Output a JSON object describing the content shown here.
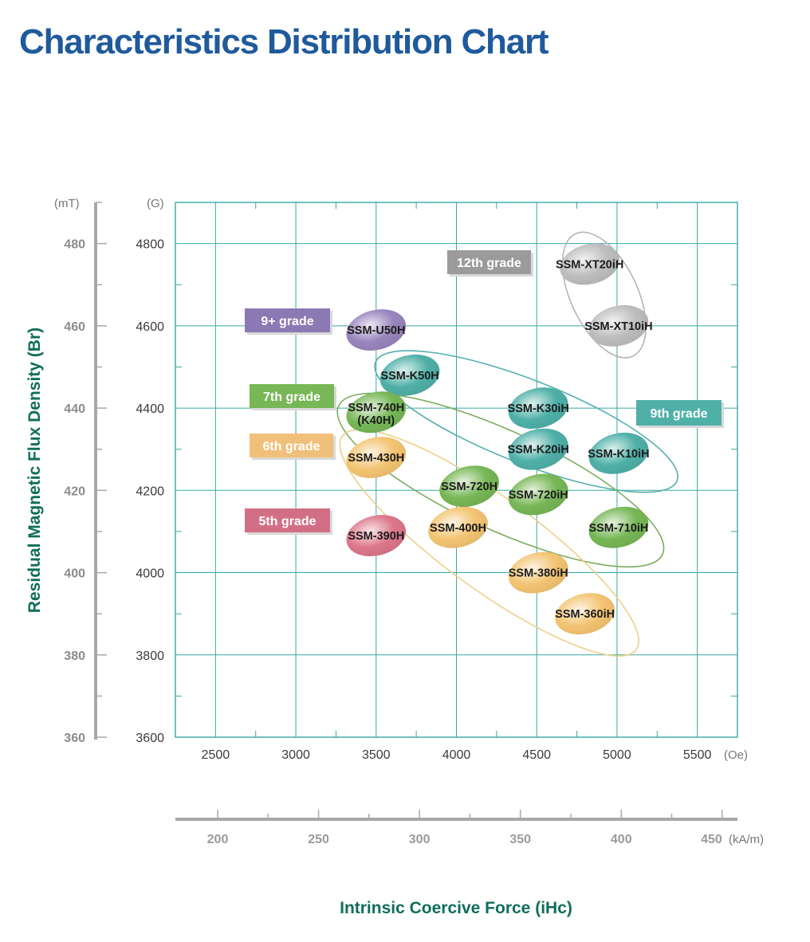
{
  "page": {
    "title": "Characteristics Distribution Chart"
  },
  "chart_data": {
    "type": "scatter",
    "title": "Characteristics Distribution Chart",
    "xlabel": "Intrinsic Coercive Force (iHc)",
    "ylabel": "Residual Magnetic Flux Density (Br)",
    "x_unit": "(Oe)",
    "x_unit_secondary": "(kA/m)",
    "y_unit": "(G)",
    "y_unit_secondary": "(mT)",
    "xlim": [
      2250,
      5750
    ],
    "ylim": [
      3600,
      4900
    ],
    "x_ticks": [
      2500,
      3000,
      3500,
      4000,
      4500,
      5000,
      5500
    ],
    "x_ticks_secondary": [
      200,
      250,
      300,
      350,
      400,
      450
    ],
    "y_ticks": [
      3600,
      3800,
      4000,
      4200,
      4400,
      4600,
      4800
    ],
    "y_ticks_secondary": [
      360,
      380,
      400,
      420,
      440,
      460,
      480
    ],
    "grid": true,
    "products": [
      {
        "name": "SSM-XT20iH",
        "x": 4830,
        "y": 4750,
        "grade": "12th grade",
        "color": "#bdbdbd"
      },
      {
        "name": "SSM-XT10iH",
        "x": 5010,
        "y": 4600,
        "grade": "12th grade",
        "color": "#bdbdbd"
      },
      {
        "name": "SSM-U50H",
        "x": 3500,
        "y": 4590,
        "grade": "9+ grade",
        "color": "#9985bd"
      },
      {
        "name": "SSM-K50H",
        "x": 3710,
        "y": 4480,
        "grade": "9th grade",
        "color": "#4fb0a8"
      },
      {
        "name": "SSM-K30iH",
        "x": 4510,
        "y": 4400,
        "grade": "9th grade",
        "color": "#4fb0a8"
      },
      {
        "name": "SSM-K20iH",
        "x": 4510,
        "y": 4300,
        "grade": "9th grade",
        "color": "#4fb0a8"
      },
      {
        "name": "SSM-K10iH",
        "x": 5010,
        "y": 4290,
        "grade": "9th grade",
        "color": "#4fb0a8"
      },
      {
        "name": "SSM-740H",
        "name2": "(K40H)",
        "x": 3500,
        "y": 4390,
        "grade": "7th grade",
        "color": "#77b756"
      },
      {
        "name": "SSM-720H",
        "x": 4080,
        "y": 4210,
        "grade": "7th grade",
        "color": "#77b756"
      },
      {
        "name": "SSM-720iH",
        "x": 4510,
        "y": 4190,
        "grade": "7th grade",
        "color": "#77b756"
      },
      {
        "name": "SSM-710iH",
        "x": 5010,
        "y": 4110,
        "grade": "7th grade",
        "color": "#77b756"
      },
      {
        "name": "SSM-430H",
        "x": 3500,
        "y": 4280,
        "grade": "6th grade",
        "color": "#f3c472"
      },
      {
        "name": "SSM-400H",
        "x": 4010,
        "y": 4110,
        "grade": "6th grade",
        "color": "#f3c472"
      },
      {
        "name": "SSM-380iH",
        "x": 4510,
        "y": 4000,
        "grade": "6th grade",
        "color": "#f3c472"
      },
      {
        "name": "SSM-360iH",
        "x": 4800,
        "y": 3900,
        "grade": "6th grade",
        "color": "#f3c472"
      },
      {
        "name": "SSM-390H",
        "x": 3500,
        "y": 4090,
        "grade": "5th grade",
        "color": "#dc7789"
      }
    ],
    "grade_labels": [
      {
        "label": "12th grade",
        "color": "#9b9b9b"
      },
      {
        "label": "9+ grade",
        "color": "#8b79b3"
      },
      {
        "label": "7th grade",
        "color": "#77b756"
      },
      {
        "label": "6th grade",
        "color": "#f0c07a"
      },
      {
        "label": "5th grade",
        "color": "#d26f85"
      },
      {
        "label": "9th grade",
        "color": "#4fb0a8"
      }
    ],
    "grade_outline_colors": {
      "12th grade": "#b4b4b4",
      "9th grade": "#54aeb0",
      "7th grade": "#7aae5e",
      "6th grade": "#eed08a"
    }
  }
}
